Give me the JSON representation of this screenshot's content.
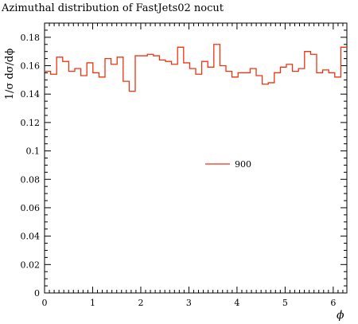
{
  "chart_data": {
    "type": "line",
    "style": "step-histogram",
    "title": "Azimuthal distribution of FastJets02 nocut",
    "xlabel": "ϕ",
    "ylabel": "1/σ dσ/dϕ",
    "xlim": [
      0,
      6.2832
    ],
    "ylim": [
      0,
      0.19
    ],
    "xticks": [
      0,
      1,
      2,
      3,
      4,
      5,
      6
    ],
    "xtick_labels": [
      "0",
      "1",
      "2",
      "3",
      "4",
      "5",
      "6"
    ],
    "yticks": [
      0,
      0.02,
      0.04,
      0.06,
      0.08,
      0.1,
      0.12,
      0.14,
      0.16,
      0.18
    ],
    "ytick_labels": [
      "0",
      "0.02",
      "0.04",
      "0.06",
      "0.08",
      "0.1",
      "0.12",
      "0.14",
      "0.16",
      "0.18"
    ],
    "grid": false,
    "legend_position": "center-right",
    "color": "#ee3311",
    "series": [
      {
        "name": "900",
        "bin_edges": [
          0,
          0.1257,
          0.2513,
          0.377,
          0.5027,
          0.6283,
          0.754,
          0.8796,
          1.0053,
          1.131,
          1.2566,
          1.3823,
          1.508,
          1.6336,
          1.7593,
          1.885,
          2.0106,
          2.1363,
          2.2619,
          2.3876,
          2.5133,
          2.6389,
          2.7646,
          2.8903,
          3.0159,
          3.1416,
          3.2673,
          3.3929,
          3.5186,
          3.6442,
          3.7699,
          3.8956,
          4.0212,
          4.1469,
          4.2726,
          4.3982,
          4.5239,
          4.6496,
          4.7752,
          4.9009,
          5.0265,
          5.1522,
          5.2779,
          5.4035,
          5.5292,
          5.6549,
          5.7805,
          5.9062,
          6.0319,
          6.1575,
          6.2832
        ],
        "values": [
          0.156,
          0.154,
          0.166,
          0.163,
          0.156,
          0.158,
          0.153,
          0.162,
          0.155,
          0.152,
          0.165,
          0.161,
          0.166,
          0.149,
          0.142,
          0.167,
          0.167,
          0.168,
          0.167,
          0.164,
          0.163,
          0.161,
          0.173,
          0.162,
          0.158,
          0.154,
          0.163,
          0.159,
          0.175,
          0.16,
          0.156,
          0.152,
          0.155,
          0.155,
          0.158,
          0.153,
          0.147,
          0.148,
          0.155,
          0.159,
          0.161,
          0.156,
          0.158,
          0.17,
          0.168,
          0.155,
          0.157,
          0.155,
          0.152,
          0.173
        ]
      }
    ]
  }
}
